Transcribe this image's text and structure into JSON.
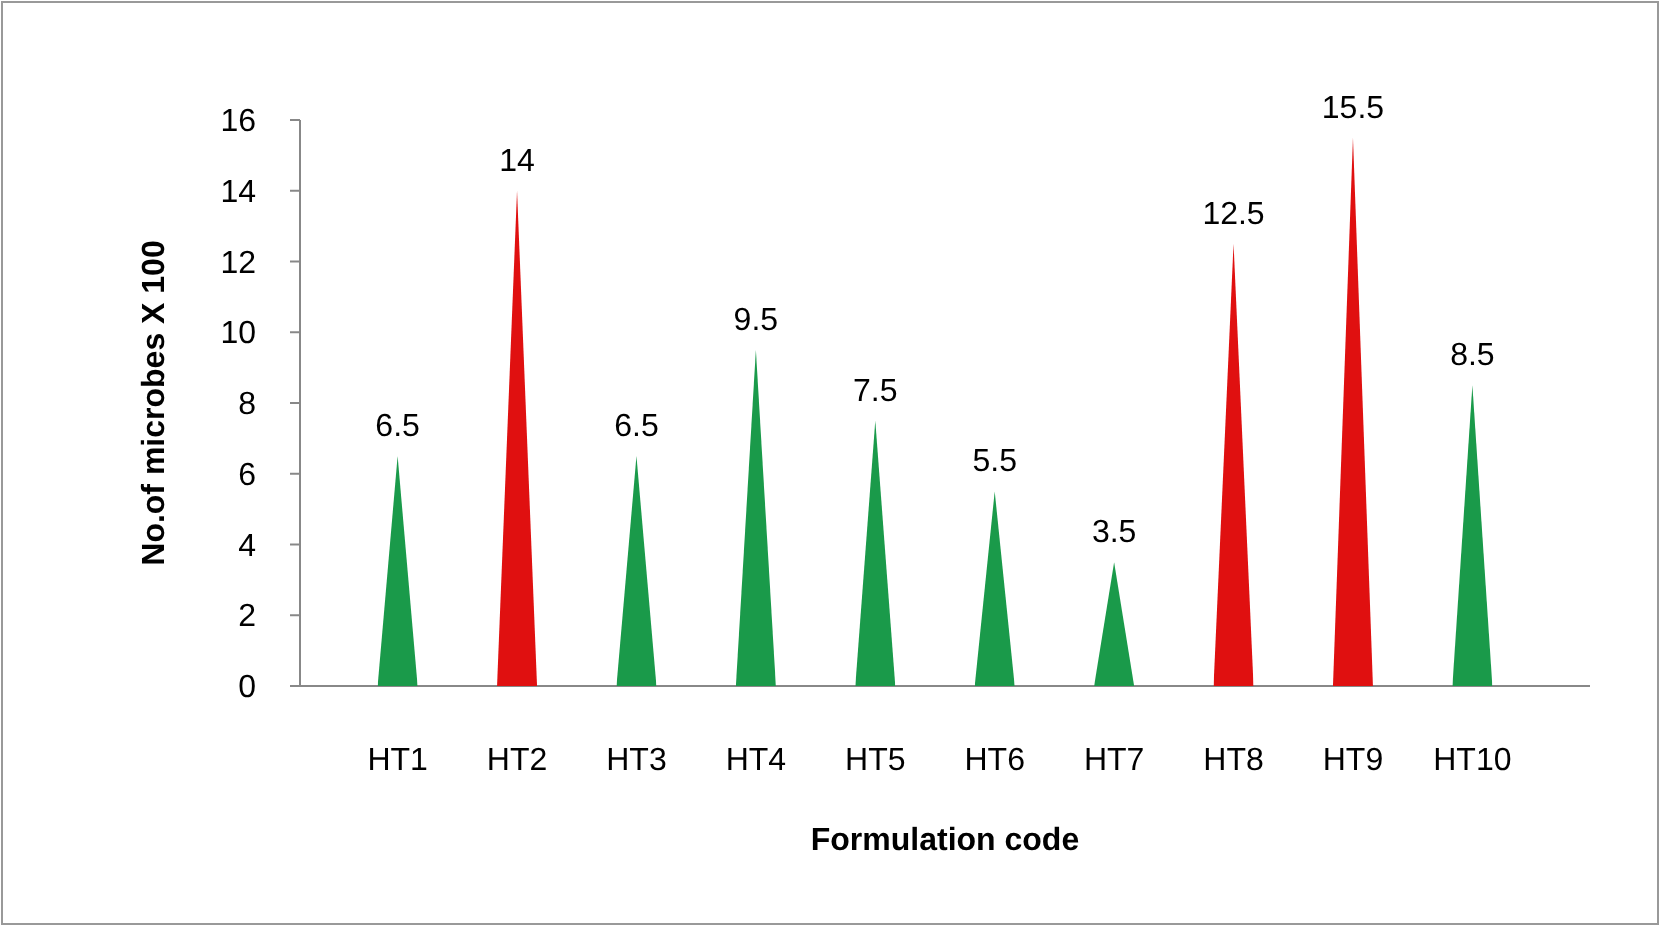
{
  "chart_data": {
    "type": "bar",
    "xlabel": "Formulation code",
    "ylabel": "No.of microbes X 100",
    "categories": [
      "HT1",
      "HT2",
      "HT3",
      "HT4",
      "HT5",
      "HT6",
      "HT7",
      "HT8",
      "HT9",
      "HT10"
    ],
    "values": [
      6.5,
      14,
      6.5,
      9.5,
      7.5,
      5.5,
      3.5,
      12.5,
      15.5,
      8.5
    ],
    "colors": [
      "#1a9a4a",
      "#e01010",
      "#1a9a4a",
      "#1a9a4a",
      "#1a9a4a",
      "#1a9a4a",
      "#1a9a4a",
      "#e01010",
      "#e01010",
      "#1a9a4a"
    ],
    "ylim": [
      0,
      16
    ],
    "yticks": [
      0,
      2,
      4,
      6,
      8,
      10,
      12,
      14,
      16
    ],
    "grid": false,
    "data_labels": true
  }
}
